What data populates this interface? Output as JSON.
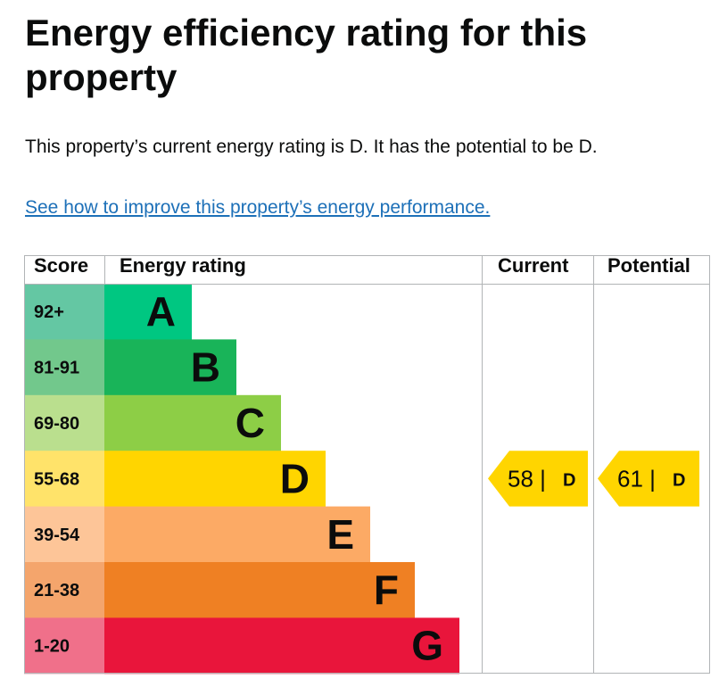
{
  "page": {
    "title": "Energy efficiency rating for this property",
    "summary": "This property’s current energy rating is D. It has the potential to be D.",
    "improve_link": "See how to improve this property’s energy performance."
  },
  "chart_data": {
    "type": "bar",
    "title": "Energy efficiency rating for this property",
    "headers": {
      "score": "Score",
      "rating": "Energy rating",
      "current": "Current",
      "potential": "Potential"
    },
    "bands": [
      {
        "letter": "A",
        "range": "92+",
        "color": "#00c781",
        "score_bg": "#64c7a3"
      },
      {
        "letter": "B",
        "range": "81-91",
        "color": "#19b459",
        "score_bg": "#72c88c"
      },
      {
        "letter": "C",
        "range": "69-80",
        "color": "#8dce46",
        "score_bg": "#badf8e"
      },
      {
        "letter": "D",
        "range": "55-68",
        "color": "#ffd500",
        "score_bg": "#ffe36a"
      },
      {
        "letter": "E",
        "range": "39-54",
        "color": "#fcaa65",
        "score_bg": "#fdc598"
      },
      {
        "letter": "F",
        "range": "21-38",
        "color": "#ef8023",
        "score_bg": "#f4a56c"
      },
      {
        "letter": "G",
        "range": "1-20",
        "color": "#e9153b",
        "score_bg": "#f0708a"
      }
    ],
    "current": {
      "score": 58,
      "band": "D",
      "label": "58 |",
      "color": "#ffd500"
    },
    "potential": {
      "score": 61,
      "band": "D",
      "label": "61 |",
      "color": "#ffd500"
    }
  }
}
